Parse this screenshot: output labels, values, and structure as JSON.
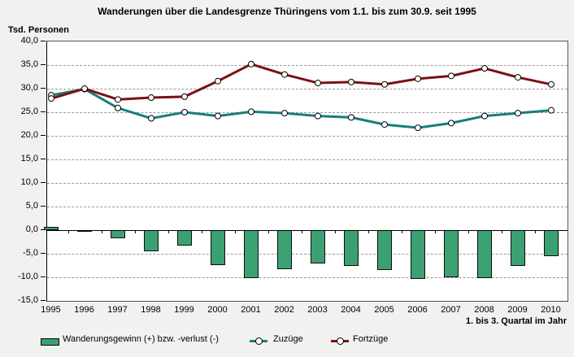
{
  "title": "Wanderungen über die Landesgrenze Thüringens vom 1.1. bis zum 30.9. seit 1995",
  "y_axis_unit": "Tsd. Personen",
  "x_axis_note": "1. bis 3. Quartal im Jahr",
  "legend": {
    "bar_label": "Wanderungsgewinn (+) bzw. -verlust (-)",
    "zuzuege_label": "Zuzüge",
    "fortzuege_label": "Fortzüge"
  },
  "colors": {
    "background": "#F1F1F0",
    "plot_background": "#FFFFFF",
    "grid": "#999999",
    "axis": "#000000",
    "marker_fill": "#FFFFFF",
    "marker_stroke": "#000000"
  },
  "chart_data": {
    "type": "combo",
    "title": "Wanderungen über die Landesgrenze Thüringens vom 1.1. bis zum 30.9. seit 1995",
    "ylabel": "Tsd. Personen",
    "xlabel": "1. bis 3. Quartal im Jahr",
    "ylim": [
      -15,
      40
    ],
    "ytick_step": 5,
    "grid": "horizontal-dashed",
    "legend_position": "bottom",
    "categories": [
      "1995",
      "1996",
      "1997",
      "1998",
      "1999",
      "2000",
      "2001",
      "2002",
      "2003",
      "2004",
      "2005",
      "2006",
      "2007",
      "2008",
      "2009",
      "2010"
    ],
    "series": [
      {
        "name": "Wanderungsgewinn (+) bzw. -verlust (-)",
        "type": "bar",
        "color": "#3BA173",
        "values": [
          0.7,
          -0.1,
          -1.8,
          -4.4,
          -3.3,
          -7.4,
          -10.1,
          -8.2,
          -7.0,
          -7.5,
          -8.5,
          -10.4,
          -10.0,
          -10.1,
          -7.6,
          -5.5
        ]
      },
      {
        "name": "Zuzüge",
        "type": "line",
        "color": "#177E7D",
        "values": [
          28.6,
          29.9,
          25.9,
          23.7,
          25.0,
          24.2,
          25.1,
          24.8,
          24.2,
          23.9,
          22.4,
          21.7,
          22.7,
          24.2,
          24.8,
          25.4
        ]
      },
      {
        "name": "Fortzüge",
        "type": "line",
        "color": "#7B1113",
        "values": [
          27.9,
          30.0,
          27.7,
          28.1,
          28.3,
          31.6,
          35.2,
          33.0,
          31.2,
          31.4,
          30.9,
          32.1,
          32.7,
          34.3,
          32.4,
          30.9
        ]
      }
    ]
  }
}
